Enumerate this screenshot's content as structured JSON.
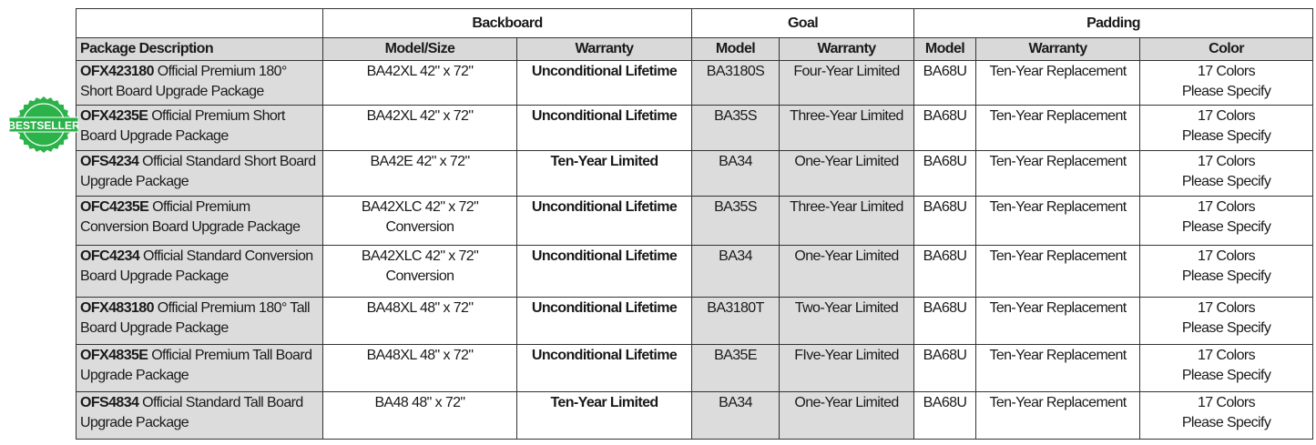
{
  "groups": {
    "backboard": "Backboard",
    "goal": "Goal",
    "padding": "Padding"
  },
  "headers": [
    "Package Description",
    "Model/Size",
    "Warranty",
    "Model",
    "Warranty",
    "Model",
    "Warranty",
    "Color"
  ],
  "badge": {
    "text": "BESTSELLER",
    "color": "#2bb34a"
  },
  "rows": [
    {
      "code": "OFX423180",
      "desc": " Official Premium 180° Short Board Upgrade Package",
      "bb_model": "BA42XL 42\" x 72\"",
      "bb_warranty": "Unconditional Lifetime",
      "goal_model": "BA3180S",
      "goal_warranty": "Four-Year Limited",
      "pad_model": "BA68U",
      "pad_warranty": "Ten-Year Replacement",
      "color1": "17 Colors",
      "color2": "Please Specify"
    },
    {
      "code": "OFX4235E",
      "desc": " Official Premium Short Board Upgrade Package",
      "bb_model": "BA42XL 42\" x 72\"",
      "bb_warranty": "Unconditional Lifetime",
      "goal_model": "BA35S",
      "goal_warranty": "Three-Year Limited",
      "pad_model": "BA68U",
      "pad_warranty": "Ten-Year Replacement",
      "color1": "17 Colors",
      "color2": "Please Specify"
    },
    {
      "code": "OFS4234",
      "desc": " Official Standard Short Board Upgrade Package",
      "bb_model": "BA42E 42\" x 72\"",
      "bb_warranty": "Ten-Year Limited",
      "goal_model": "BA34",
      "goal_warranty": "One-Year Limited",
      "pad_model": "BA68U",
      "pad_warranty": "Ten-Year Replacement",
      "color1": "17 Colors",
      "color2": "Please Specify"
    },
    {
      "code": "OFC4235E",
      "desc": " Official Premium Conversion Board Upgrade Package",
      "bb_model": "BA42XLC 42\" x 72\" Conversion",
      "bb_warranty": "Unconditional Lifetime",
      "goal_model": "BA35S",
      "goal_warranty": "Three-Year Limited",
      "pad_model": "BA68U",
      "pad_warranty": "Ten-Year Replacement",
      "color1": "17 Colors",
      "color2": "Please Specify"
    },
    {
      "code": "OFC4234",
      "desc": " Official Standard Conversion Board Upgrade Package",
      "bb_model": "BA42XLC 42\" x 72\" Conversion",
      "bb_warranty": "Unconditional Lifetime",
      "goal_model": "BA34",
      "goal_warranty": "One-Year Limited",
      "pad_model": "BA68U",
      "pad_warranty": "Ten-Year Replacement",
      "color1": "17 Colors",
      "color2": "Please Specify"
    },
    {
      "code": "OFX483180",
      "desc": " Official Premium 180° Tall Board Upgrade Package",
      "bb_model": "BA48XL 48\" x 72\"",
      "bb_warranty": "Unconditional Lifetime",
      "goal_model": "BA3180T",
      "goal_warranty": "Two-Year Limited",
      "pad_model": "BA68U",
      "pad_warranty": "Ten-Year Replacement",
      "color1": "17 Colors",
      "color2": "Please Specify"
    },
    {
      "code": "OFX4835E",
      "desc": " Official Premium Tall Board Upgrade Package",
      "bb_model": "BA48XL 48\" x 72\"",
      "bb_warranty": "Unconditional Lifetime",
      "goal_model": "BA35E",
      "goal_warranty": "FIve-Year Limited",
      "pad_model": "BA68U",
      "pad_warranty": "Ten-Year Replacement",
      "color1": "17 Colors",
      "color2": "Please Specify"
    },
    {
      "code": "OFS4834",
      "desc": " Official Standard Tall Board Upgrade Package",
      "bb_model": "BA48 48\" x 72\"",
      "bb_warranty": "Ten-Year Limited",
      "goal_model": "BA34",
      "goal_warranty": "One-Year Limited",
      "pad_model": "BA68U",
      "pad_warranty": "Ten-Year Replacement",
      "color1": "17 Colors",
      "color2": "Please Specify"
    }
  ]
}
